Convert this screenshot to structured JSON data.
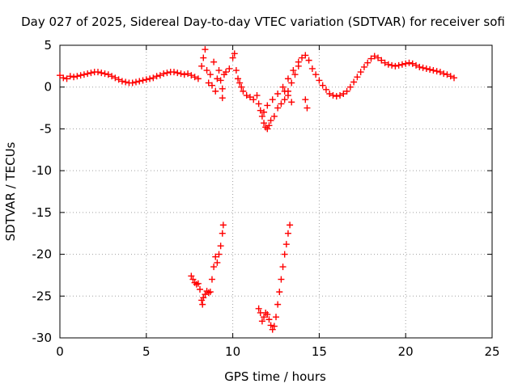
{
  "chart_data": {
    "type": "scatter",
    "title": "Day 027 of 2025, Sidereal Day-to-day VTEC variation (SDTVAR) for receiver sofi",
    "xlabel": "GPS time / hours",
    "ylabel": "SDTVAR / TECUs",
    "xlim": [
      0,
      25
    ],
    "ylim": [
      -30,
      5
    ],
    "xticks": [
      0,
      5,
      10,
      15,
      20,
      25
    ],
    "yticks": [
      5,
      0,
      -5,
      -10,
      -15,
      -20,
      -25,
      -30
    ],
    "xtick_labels": [
      "0",
      "5",
      "10",
      "15",
      "20",
      "25"
    ],
    "ytick_labels": [
      "5",
      "0",
      "-5",
      "-10",
      "-15",
      "-20",
      "-25",
      "-30"
    ],
    "grid": true,
    "marker": "+",
    "color": "#ff0000",
    "series": [
      {
        "name": "SDTVAR",
        "points": [
          [
            0.0,
            1.4
          ],
          [
            0.2,
            1.1
          ],
          [
            0.4,
            1.0
          ],
          [
            0.6,
            1.3
          ],
          [
            0.8,
            1.2
          ],
          [
            1.0,
            1.3
          ],
          [
            1.2,
            1.4
          ],
          [
            1.4,
            1.5
          ],
          [
            1.6,
            1.6
          ],
          [
            1.8,
            1.7
          ],
          [
            2.0,
            1.8
          ],
          [
            2.2,
            1.8
          ],
          [
            2.4,
            1.7
          ],
          [
            2.6,
            1.6
          ],
          [
            2.8,
            1.5
          ],
          [
            3.0,
            1.3
          ],
          [
            3.2,
            1.1
          ],
          [
            3.4,
            0.9
          ],
          [
            3.6,
            0.7
          ],
          [
            3.8,
            0.6
          ],
          [
            4.0,
            0.5
          ],
          [
            4.2,
            0.5
          ],
          [
            4.4,
            0.6
          ],
          [
            4.6,
            0.7
          ],
          [
            4.8,
            0.8
          ],
          [
            5.0,
            0.9
          ],
          [
            5.2,
            1.0
          ],
          [
            5.4,
            1.1
          ],
          [
            5.6,
            1.3
          ],
          [
            5.8,
            1.4
          ],
          [
            6.0,
            1.6
          ],
          [
            6.2,
            1.7
          ],
          [
            6.4,
            1.8
          ],
          [
            6.6,
            1.8
          ],
          [
            6.8,
            1.7
          ],
          [
            7.0,
            1.6
          ],
          [
            7.2,
            1.5
          ],
          [
            7.4,
            1.6
          ],
          [
            7.6,
            1.4
          ],
          [
            7.8,
            1.2
          ],
          [
            8.0,
            1.0
          ],
          [
            8.2,
            2.5
          ],
          [
            8.3,
            3.5
          ],
          [
            8.4,
            4.5
          ],
          [
            8.5,
            2.0
          ],
          [
            8.6,
            0.5
          ],
          [
            8.7,
            1.5
          ],
          [
            8.8,
            0.2
          ],
          [
            8.9,
            3.0
          ],
          [
            9.0,
            -0.5
          ],
          [
            9.1,
            1.0
          ],
          [
            9.2,
            2.0
          ],
          [
            9.3,
            0.8
          ],
          [
            9.4,
            -0.2
          ],
          [
            9.5,
            1.5
          ],
          [
            9.6,
            1.8
          ],
          [
            9.8,
            2.2
          ],
          [
            10.0,
            3.5
          ],
          [
            10.1,
            4.0
          ],
          [
            10.2,
            2.0
          ],
          [
            10.3,
            1.0
          ],
          [
            10.4,
            0.5
          ],
          [
            10.5,
            0.0
          ],
          [
            10.6,
            -0.5
          ],
          [
            10.8,
            -1.0
          ],
          [
            11.0,
            -1.2
          ],
          [
            11.2,
            -1.5
          ],
          [
            11.4,
            -1.0
          ],
          [
            11.5,
            -2.0
          ],
          [
            11.6,
            -2.8
          ],
          [
            11.7,
            -3.5
          ],
          [
            11.8,
            -4.3
          ],
          [
            11.9,
            -4.8
          ],
          [
            12.0,
            -5.0
          ],
          [
            12.1,
            -4.6
          ],
          [
            12.2,
            -4.0
          ],
          [
            12.4,
            -3.5
          ],
          [
            12.6,
            -2.5
          ],
          [
            12.8,
            -2.0
          ],
          [
            13.0,
            -1.5
          ],
          [
            13.2,
            -0.5
          ],
          [
            13.4,
            0.5
          ],
          [
            13.6,
            1.5
          ],
          [
            13.8,
            2.5
          ],
          [
            14.0,
            3.5
          ],
          [
            14.2,
            3.8
          ],
          [
            14.4,
            3.2
          ],
          [
            14.6,
            2.2
          ],
          [
            14.8,
            1.5
          ],
          [
            15.0,
            0.8
          ],
          [
            15.2,
            0.2
          ],
          [
            15.4,
            -0.3
          ],
          [
            15.6,
            -0.8
          ],
          [
            15.8,
            -1.0
          ],
          [
            16.0,
            -1.1
          ],
          [
            16.2,
            -1.0
          ],
          [
            16.4,
            -0.8
          ],
          [
            16.6,
            -0.5
          ],
          [
            16.8,
            0.0
          ],
          [
            17.0,
            0.6
          ],
          [
            17.2,
            1.2
          ],
          [
            17.4,
            1.8
          ],
          [
            17.6,
            2.4
          ],
          [
            17.8,
            2.9
          ],
          [
            18.0,
            3.4
          ],
          [
            18.2,
            3.7
          ],
          [
            18.4,
            3.5
          ],
          [
            18.6,
            3.2
          ],
          [
            18.8,
            2.9
          ],
          [
            19.0,
            2.7
          ],
          [
            19.2,
            2.6
          ],
          [
            19.4,
            2.5
          ],
          [
            19.6,
            2.6
          ],
          [
            19.8,
            2.7
          ],
          [
            20.0,
            2.8
          ],
          [
            20.2,
            2.9
          ],
          [
            20.4,
            2.8
          ],
          [
            20.6,
            2.6
          ],
          [
            20.8,
            2.4
          ],
          [
            21.0,
            2.3
          ],
          [
            21.2,
            2.2
          ],
          [
            21.4,
            2.1
          ],
          [
            21.6,
            2.0
          ],
          [
            21.8,
            1.9
          ],
          [
            22.0,
            1.8
          ],
          [
            22.2,
            1.6
          ],
          [
            22.4,
            1.5
          ],
          [
            22.6,
            1.3
          ],
          [
            22.8,
            1.1
          ],
          [
            11.8,
            -3.0
          ],
          [
            12.0,
            -2.2
          ],
          [
            12.3,
            -1.5
          ],
          [
            12.6,
            -0.8
          ],
          [
            12.9,
            0.0
          ],
          [
            13.2,
            1.0
          ],
          [
            13.5,
            2.0
          ],
          [
            13.8,
            3.0
          ],
          [
            13.0,
            -0.5
          ],
          [
            13.2,
            -1.0
          ],
          [
            13.4,
            -1.8
          ],
          [
            14.2,
            -1.5
          ],
          [
            14.3,
            -2.5
          ],
          [
            9.4,
            -1.3
          ],
          [
            7.6,
            -22.6
          ],
          [
            7.7,
            -23.0
          ],
          [
            7.8,
            -23.4
          ],
          [
            7.9,
            -23.6
          ],
          [
            8.0,
            -23.5
          ],
          [
            8.1,
            -24.2
          ],
          [
            8.2,
            -25.5
          ],
          [
            8.25,
            -26.0
          ],
          [
            8.3,
            -25.2
          ],
          [
            8.4,
            -24.8
          ],
          [
            8.5,
            -24.4
          ],
          [
            8.6,
            -24.6
          ],
          [
            8.7,
            -24.5
          ],
          [
            8.8,
            -23.0
          ],
          [
            8.9,
            -21.5
          ],
          [
            9.0,
            -20.3
          ],
          [
            9.1,
            -21.0
          ],
          [
            9.2,
            -20.0
          ],
          [
            9.3,
            -19.0
          ],
          [
            9.4,
            -17.5
          ],
          [
            9.45,
            -16.5
          ],
          [
            11.5,
            -26.5
          ],
          [
            11.6,
            -27.0
          ],
          [
            11.7,
            -28.0
          ],
          [
            11.8,
            -27.5
          ],
          [
            11.9,
            -27.0
          ],
          [
            12.0,
            -27.2
          ],
          [
            12.1,
            -27.8
          ],
          [
            12.2,
            -28.5
          ],
          [
            12.3,
            -29.0
          ],
          [
            12.4,
            -28.6
          ],
          [
            12.5,
            -27.5
          ],
          [
            12.6,
            -26.0
          ],
          [
            12.7,
            -24.5
          ],
          [
            12.8,
            -23.0
          ],
          [
            12.9,
            -21.5
          ],
          [
            13.0,
            -20.0
          ],
          [
            13.1,
            -18.8
          ],
          [
            13.2,
            -17.5
          ],
          [
            13.3,
            -16.5
          ]
        ]
      }
    ]
  }
}
